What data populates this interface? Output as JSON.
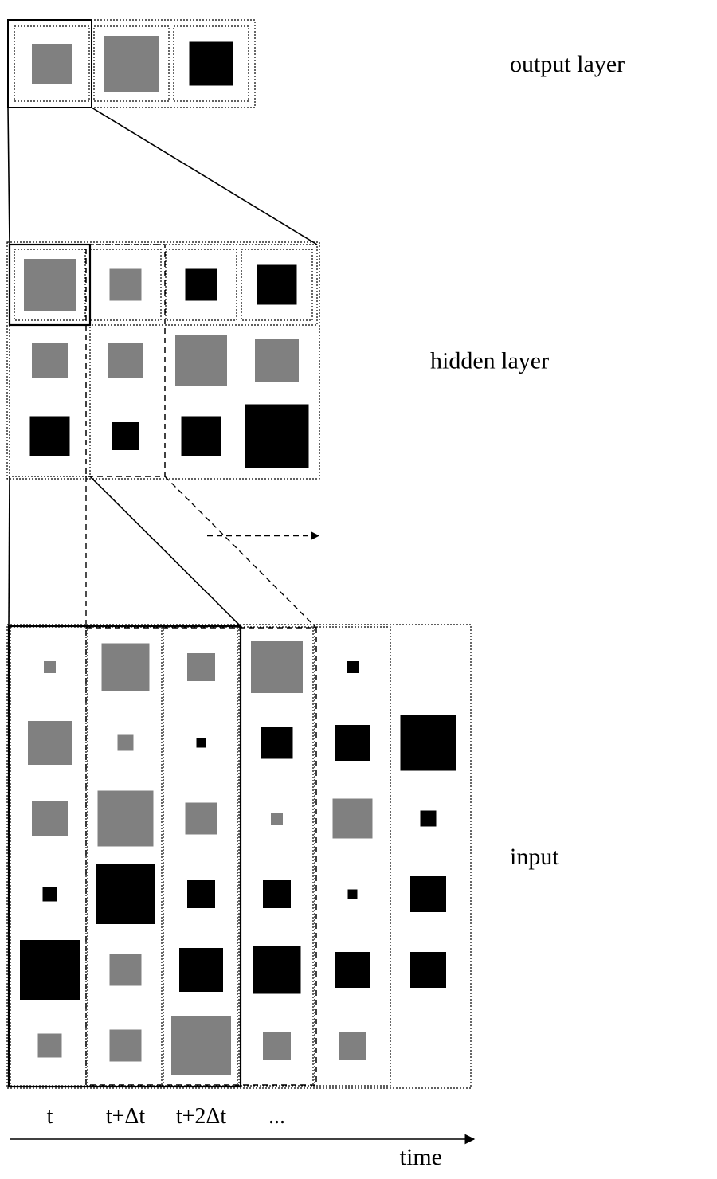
{
  "labels": {
    "output": "output layer",
    "hidden": "hidden layer",
    "input": "input",
    "time": "time",
    "t": "t",
    "t_dt": "t+Δt",
    "t_2dt": "t+2Δt",
    "dots": "..."
  },
  "colors": {
    "gray": "#808080",
    "black": "#000000",
    "stroke": "#000000"
  },
  "layout": {
    "outputY": 30,
    "outputCellW": 100,
    "outputCellH": 100,
    "hiddenY": 310,
    "hiddenCellW": 95,
    "hiddenCellH": 95,
    "inputY": 790,
    "inputCellW": 95,
    "inputCellH": 95,
    "startX": 15
  },
  "output": {
    "cells": [
      {
        "size": 50,
        "color": "gray"
      },
      {
        "size": 70,
        "color": "gray"
      },
      {
        "size": 55,
        "color": "black"
      }
    ]
  },
  "hidden": {
    "rows": 3,
    "cols": 4,
    "cells": [
      [
        {
          "size": 65,
          "color": "gray"
        },
        {
          "size": 40,
          "color": "gray"
        },
        {
          "size": 40,
          "color": "black"
        },
        {
          "size": 50,
          "color": "black"
        }
      ],
      [
        {
          "size": 45,
          "color": "gray"
        },
        {
          "size": 45,
          "color": "gray"
        },
        {
          "size": 65,
          "color": "gray"
        },
        {
          "size": 55,
          "color": "gray"
        }
      ],
      [
        {
          "size": 50,
          "color": "black"
        },
        {
          "size": 35,
          "color": "black"
        },
        {
          "size": 50,
          "color": "black"
        },
        {
          "size": 80,
          "color": "black"
        }
      ]
    ]
  },
  "input": {
    "rows": 6,
    "cols": 6,
    "cells": [
      [
        {
          "size": 15,
          "color": "gray"
        },
        {
          "size": 60,
          "color": "gray"
        },
        {
          "size": 35,
          "color": "gray"
        },
        {
          "size": 65,
          "color": "gray"
        },
        {
          "size": 15,
          "color": "black"
        },
        {
          "size": 0,
          "color": "gray"
        }
      ],
      [
        {
          "size": 55,
          "color": "gray"
        },
        {
          "size": 20,
          "color": "gray"
        },
        {
          "size": 12,
          "color": "black"
        },
        {
          "size": 40,
          "color": "black"
        },
        {
          "size": 45,
          "color": "black"
        },
        {
          "size": 70,
          "color": "black"
        }
      ],
      [
        {
          "size": 45,
          "color": "gray"
        },
        {
          "size": 70,
          "color": "gray"
        },
        {
          "size": 40,
          "color": "gray"
        },
        {
          "size": 15,
          "color": "gray"
        },
        {
          "size": 50,
          "color": "gray"
        },
        {
          "size": 20,
          "color": "black"
        }
      ],
      [
        {
          "size": 18,
          "color": "black"
        },
        {
          "size": 75,
          "color": "black"
        },
        {
          "size": 35,
          "color": "black"
        },
        {
          "size": 35,
          "color": "black"
        },
        {
          "size": 12,
          "color": "black"
        },
        {
          "size": 45,
          "color": "black"
        }
      ],
      [
        {
          "size": 75,
          "color": "black"
        },
        {
          "size": 40,
          "color": "gray"
        },
        {
          "size": 55,
          "color": "black"
        },
        {
          "size": 60,
          "color": "black"
        },
        {
          "size": 45,
          "color": "black"
        },
        {
          "size": 45,
          "color": "black"
        }
      ],
      [
        {
          "size": 30,
          "color": "gray"
        },
        {
          "size": 40,
          "color": "gray"
        },
        {
          "size": 75,
          "color": "gray"
        },
        {
          "size": 35,
          "color": "gray"
        },
        {
          "size": 35,
          "color": "gray"
        },
        {
          "size": 0,
          "color": "gray"
        }
      ]
    ]
  }
}
